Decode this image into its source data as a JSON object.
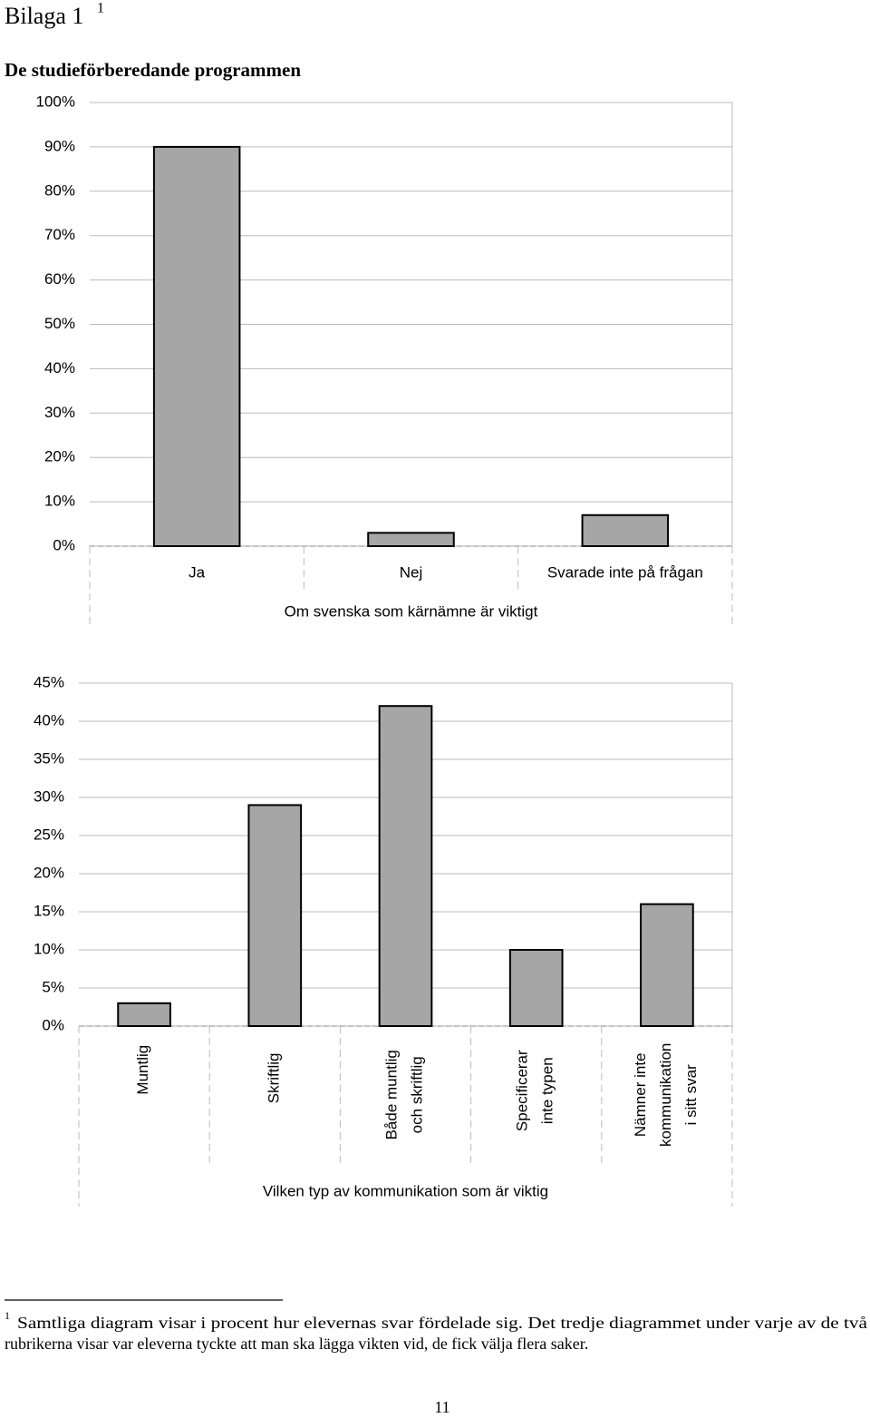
{
  "heading": "Bilaga 1",
  "heading_note": "1",
  "section_title": "De studieförberedande programmen",
  "chart_data": [
    {
      "type": "bar",
      "x_label": "Om svenska som kärnämne är viktigt",
      "categories": [
        "Ja",
        "Nej",
        "Svarade inte på frågan"
      ],
      "values": [
        90,
        3,
        7
      ],
      "color": "#a6a6a6",
      "grid": true,
      "ylim": [
        0,
        100
      ],
      "yticks": [
        {
          "value": 0,
          "label": "0%"
        },
        {
          "value": 10,
          "label": "10%"
        },
        {
          "value": 20,
          "label": "20%"
        },
        {
          "value": 30,
          "label": "30%"
        },
        {
          "value": 40,
          "label": "40%"
        },
        {
          "value": 50,
          "label": "50%"
        },
        {
          "value": 60,
          "label": "60%"
        },
        {
          "value": 70,
          "label": "70%"
        },
        {
          "value": 80,
          "label": "80%"
        },
        {
          "value": 90,
          "label": "90%"
        },
        {
          "value": 100,
          "label": "100%"
        }
      ]
    },
    {
      "type": "bar",
      "x_label": "Vilken typ av kommunikation som är viktig",
      "categories": [
        "Muntlig",
        "Skriftlig",
        "Både muntlig\noch skriftlig",
        "Specificerar\ninte typen",
        "Nämner inte\nkommunikation\ni sitt svar"
      ],
      "values": [
        3,
        29,
        42,
        10,
        16
      ],
      "color": "#a6a6a6",
      "grid": true,
      "ylim": [
        0,
        45
      ],
      "yticks": [
        {
          "value": 0,
          "label": "0%"
        },
        {
          "value": 5,
          "label": "5%"
        },
        {
          "value": 10,
          "label": "10%"
        },
        {
          "value": 15,
          "label": "15%"
        },
        {
          "value": 20,
          "label": "20%"
        },
        {
          "value": 25,
          "label": "25%"
        },
        {
          "value": 30,
          "label": "30%"
        },
        {
          "value": 35,
          "label": "35%"
        },
        {
          "value": 40,
          "label": "40%"
        },
        {
          "value": 45,
          "label": "45%"
        }
      ]
    }
  ],
  "footnote": {
    "mark": "1",
    "lines": [
      "Samtliga diagram visar i procent hur elevernas svar fördelade sig. Det tredje diagrammet under varje av de två",
      "rubrikerna visar var eleverna tyckte att man ska lägga vikten vid, de fick välja flera saker."
    ]
  },
  "page_number": "11"
}
